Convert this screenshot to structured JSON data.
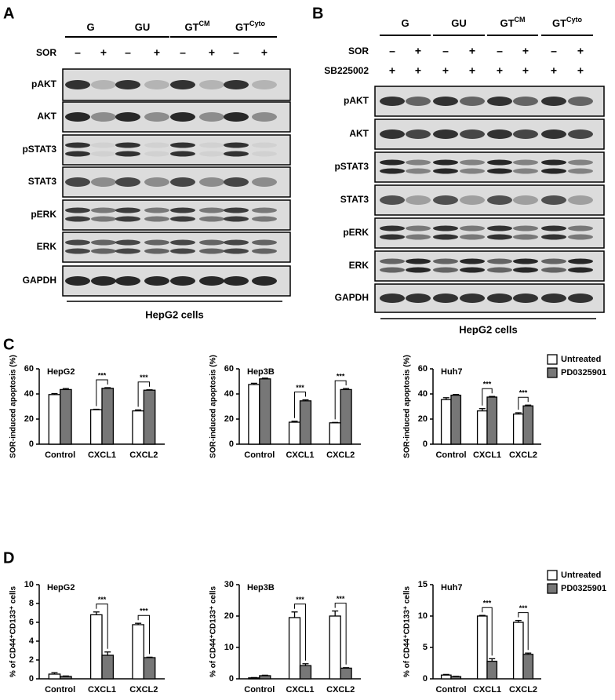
{
  "panel_labels": [
    "A",
    "B",
    "C",
    "D"
  ],
  "blots": [
    {
      "groups": [
        {
          "text": "G"
        },
        {
          "text": "GU"
        },
        {
          "text": "GT",
          "sup": "CM"
        },
        {
          "text": "GT",
          "sup": "Cyto"
        }
      ],
      "treatments": [
        {
          "name": "SOR",
          "signs": [
            "–",
            "+",
            "–",
            "+",
            "–",
            "+",
            "–",
            "+"
          ]
        }
      ],
      "rows": [
        "pAKT",
        "AKT",
        "pSTAT3",
        "STAT3",
        "pERK",
        "ERK",
        "GAPDH"
      ],
      "footer": "HepG2 cells"
    },
    {
      "groups": [
        {
          "text": "G"
        },
        {
          "text": "GU"
        },
        {
          "text": "GT",
          "sup": "CM"
        },
        {
          "text": "GT",
          "sup": "Cyto"
        }
      ],
      "treatments": [
        {
          "name": "SOR",
          "signs": [
            "–",
            "+",
            "–",
            "+",
            "–",
            "+",
            "–",
            "+"
          ]
        },
        {
          "name": "SB225002",
          "signs": [
            "+",
            "+",
            "+",
            "+",
            "+",
            "+",
            "+",
            "+"
          ]
        }
      ],
      "rows": [
        "pAKT",
        "AKT",
        "pSTAT3",
        "STAT3",
        "pERK",
        "ERK",
        "GAPDH"
      ],
      "footer": "HepG2 cells"
    }
  ],
  "chart_data": [
    {
      "type": "bar",
      "title": "HepG2",
      "y_label": "SOR-induced apoptosis (%)",
      "categories": [
        "Control",
        "CXCL1",
        "CXCL2"
      ],
      "series": [
        {
          "name": "Untreated",
          "color": "#ffffff",
          "values": [
            39.5,
            27.5,
            26.5
          ],
          "errors": [
            0.8,
            0.3,
            0.8
          ]
        },
        {
          "name": "PD0325901",
          "color": "#777777",
          "values": [
            43.5,
            44.5,
            43
          ],
          "errors": [
            0.8,
            0.5,
            0.3
          ]
        }
      ],
      "ylim": [
        0,
        60
      ],
      "yticks": [
        0,
        20,
        40,
        60
      ],
      "annotations": [
        {
          "text": "***",
          "category": 1
        },
        {
          "text": "***",
          "category": 2
        }
      ]
    },
    {
      "type": "bar",
      "title": "Hep3B",
      "y_label": "SOR-induced apoptosis (%)",
      "categories": [
        "Control",
        "CXCL1",
        "CXCL2"
      ],
      "series": [
        {
          "name": "Untreated",
          "color": "#ffffff",
          "values": [
            47.5,
            17.5,
            17
          ],
          "errors": [
            1,
            0.8,
            0.3
          ]
        },
        {
          "name": "PD0325901",
          "color": "#777777",
          "values": [
            52,
            34.5,
            43.5
          ],
          "errors": [
            0.6,
            0.8,
            0.8
          ]
        }
      ],
      "ylim": [
        0,
        60
      ],
      "yticks": [
        0,
        20,
        40,
        60
      ],
      "annotations": [
        {
          "text": "***",
          "category": 1
        },
        {
          "text": "***",
          "category": 2
        }
      ]
    },
    {
      "type": "bar",
      "title": "Huh7",
      "y_label": "SOR-induced apoptosis (%)",
      "categories": [
        "Control",
        "CXCL1",
        "CXCL2"
      ],
      "series": [
        {
          "name": "Untreated",
          "color": "#ffffff",
          "values": [
            35.5,
            26.5,
            24
          ],
          "errors": [
            1.5,
            1.8,
            1
          ]
        },
        {
          "name": "PD0325901",
          "color": "#777777",
          "values": [
            39,
            37.5,
            30.5
          ],
          "errors": [
            0.6,
            0.5,
            0.6
          ]
        }
      ],
      "ylim": [
        0,
        60
      ],
      "yticks": [
        0,
        20,
        40,
        60
      ],
      "legend": "right",
      "annotations": [
        {
          "text": "***",
          "category": 1
        },
        {
          "text": "***",
          "category": 2
        }
      ]
    },
    {
      "type": "bar",
      "title": "HepG2",
      "y_label": "% of CD44⁺CD133⁺ cells",
      "categories": [
        "Control",
        "CXCL1",
        "CXCL2"
      ],
      "series": [
        {
          "name": "Untreated",
          "color": "#ffffff",
          "values": [
            0.5,
            6.8,
            5.75
          ],
          "errors": [
            0.15,
            0.3,
            0.15
          ]
        },
        {
          "name": "PD0325901",
          "color": "#777777",
          "values": [
            0.25,
            2.5,
            2.25
          ],
          "errors": [
            0.05,
            0.35,
            0.05
          ]
        }
      ],
      "ylim": [
        0,
        10
      ],
      "yticks": [
        0,
        2,
        4,
        6,
        8,
        10
      ],
      "annotations": [
        {
          "text": "***",
          "category": 1
        },
        {
          "text": "***",
          "category": 2
        }
      ]
    },
    {
      "type": "bar",
      "title": "Hep3B",
      "y_label": "% of CD44⁺CD133⁺ cells",
      "categories": [
        "Control",
        "CXCL1",
        "CXCL2"
      ],
      "series": [
        {
          "name": "Untreated",
          "color": "#ffffff",
          "values": [
            0.3,
            19.5,
            20
          ],
          "errors": [
            0.1,
            1.8,
            1.6
          ]
        },
        {
          "name": "PD0325901",
          "color": "#777777",
          "values": [
            1,
            4.2,
            3.4
          ],
          "errors": [
            0.15,
            0.6,
            0.15
          ]
        }
      ],
      "ylim": [
        0,
        30
      ],
      "yticks": [
        0,
        10,
        20,
        30
      ],
      "annotations": [
        {
          "text": "***",
          "category": 1
        },
        {
          "text": "***",
          "category": 2
        }
      ]
    },
    {
      "type": "bar",
      "title": "Huh7",
      "y_label": "% of CD44⁺CD133⁺ cells",
      "categories": [
        "Control",
        "CXCL1",
        "CXCL2"
      ],
      "series": [
        {
          "name": "Untreated",
          "color": "#ffffff",
          "values": [
            0.6,
            10,
            9
          ],
          "errors": [
            0.1,
            0.1,
            0.3
          ]
        },
        {
          "name": "PD0325901",
          "color": "#777777",
          "values": [
            0.35,
            2.8,
            3.9
          ],
          "errors": [
            0.05,
            0.4,
            0.2
          ]
        }
      ],
      "ylim": [
        0,
        15
      ],
      "yticks": [
        0,
        5,
        10,
        15
      ],
      "legend": "right",
      "annotations": [
        {
          "text": "***",
          "category": 1
        },
        {
          "text": "***",
          "category": 2
        }
      ]
    }
  ]
}
